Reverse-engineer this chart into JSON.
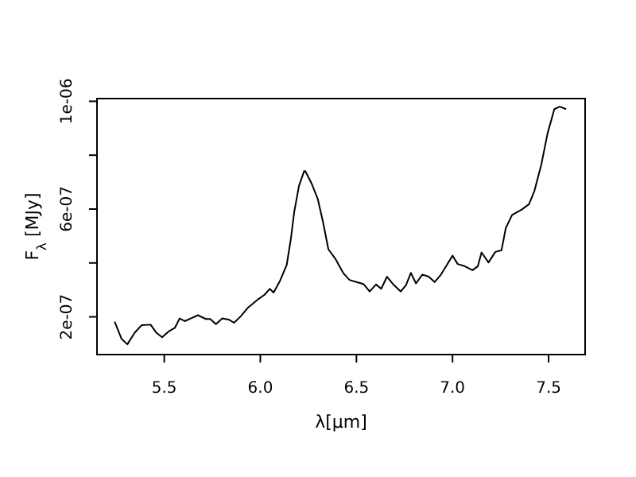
{
  "chart_data": {
    "type": "line",
    "xlabel": "λ[μm]",
    "ylabel": "F$_{λ}$ [MJy]",
    "xlim": [
      5.15,
      7.69
    ],
    "ylim": [
      6e-08,
      1.01e-06
    ],
    "xticks": [
      5.5,
      {
        "value": 6,
        "label": "6.0"
      },
      6.5,
      {
        "value": 7,
        "label": "7.0"
      },
      7.5
    ],
    "yticks": [
      {
        "value": 2e-07,
        "label": "2e-07"
      },
      {
        "value": 4e-07,
        "label": null
      },
      {
        "value": 6e-07,
        "label": "6e-07"
      },
      {
        "value": 8e-07,
        "label": null
      },
      {
        "value": 1e-06,
        "label": "1e-06"
      }
    ],
    "series": [
      {
        "color": "#000000",
        "x": [
          5.242,
          5.278,
          5.308,
          5.346,
          5.382,
          5.429,
          5.459,
          5.489,
          5.525,
          5.555,
          5.58,
          5.607,
          5.637,
          5.676,
          5.717,
          5.739,
          5.769,
          5.802,
          5.835,
          5.863,
          5.898,
          5.937,
          5.992,
          6.022,
          6.049,
          6.069,
          6.102,
          6.137,
          6.159,
          6.176,
          6.201,
          6.228,
          6.234,
          6.266,
          6.299,
          6.327,
          6.354,
          6.39,
          6.431,
          6.464,
          6.5,
          6.536,
          6.569,
          6.602,
          6.629,
          6.659,
          6.695,
          6.731,
          6.758,
          6.783,
          6.81,
          6.843,
          6.876,
          6.907,
          6.94,
          6.97,
          7.0,
          7.027,
          7.063,
          7.104,
          7.132,
          7.151,
          7.187,
          7.223,
          7.255,
          7.277,
          7.31,
          7.36,
          7.398,
          7.426,
          7.462,
          7.495,
          7.53,
          7.558,
          7.591
        ],
        "values": [
          1.82e-07,
          1.18e-07,
          9.8e-08,
          1.41e-07,
          1.69e-07,
          1.71e-07,
          1.41e-07,
          1.24e-07,
          1.47e-07,
          1.59e-07,
          1.94e-07,
          1.84e-07,
          1.94e-07,
          2.06e-07,
          1.92e-07,
          1.92e-07,
          1.73e-07,
          1.94e-07,
          1.9e-07,
          1.78e-07,
          2.02e-07,
          2.35e-07,
          2.67e-07,
          2.82e-07,
          3.04e-07,
          2.9e-07,
          3.33e-07,
          3.92e-07,
          4.9e-07,
          5.88e-07,
          6.86e-07,
          7.41e-07,
          7.41e-07,
          6.96e-07,
          6.37e-07,
          5.49e-07,
          4.51e-07,
          4.16e-07,
          3.63e-07,
          3.37e-07,
          3.29e-07,
          3.22e-07,
          2.94e-07,
          3.2e-07,
          3.04e-07,
          3.49e-07,
          3.18e-07,
          2.94e-07,
          3.18e-07,
          3.63e-07,
          3.24e-07,
          3.57e-07,
          3.49e-07,
          3.29e-07,
          3.57e-07,
          3.92e-07,
          4.27e-07,
          3.96e-07,
          3.88e-07,
          3.73e-07,
          3.88e-07,
          4.39e-07,
          4.02e-07,
          4.41e-07,
          4.47e-07,
          5.29e-07,
          5.78e-07,
          5.98e-07,
          6.18e-07,
          6.67e-07,
          7.65e-07,
          8.82e-07,
          9.71e-07,
          9.8e-07,
          9.71e-07
        ]
      }
    ]
  }
}
